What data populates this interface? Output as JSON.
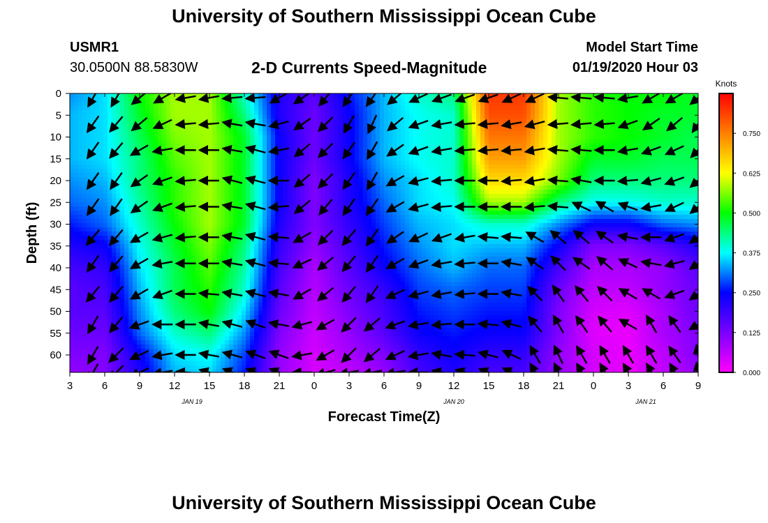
{
  "header": {
    "title": "University of Southern Mississippi Ocean Cube",
    "station_id": "USMR1",
    "station_coords": "30.0500N 88.5830W",
    "chart_title": "2-D Currents Speed-Magnitude",
    "model_start_label": "Model Start Time",
    "model_start_value": "01/19/2020 Hour 03"
  },
  "footer": {
    "title": "University of Southern Mississippi Ocean Cube"
  },
  "chart_data": {
    "type": "heatmap",
    "title": "2-D Currents Speed-Magnitude",
    "xlabel": "Forecast Time(Z)",
    "ylabel": "Depth (ft)",
    "x_tick_labels": [
      "3",
      "6",
      "9",
      "12",
      "15",
      "18",
      "21",
      "0",
      "3",
      "6",
      "9",
      "12",
      "15",
      "18",
      "21",
      "0",
      "3",
      "6",
      "9"
    ],
    "date_labels": [
      {
        "label": "JAN 19",
        "at_tick": 3.5
      },
      {
        "label": "JAN 20",
        "at_tick": 11
      },
      {
        "label": "JAN 21",
        "at_tick": 16.5
      }
    ],
    "y_ticks": [
      0,
      5,
      10,
      15,
      20,
      25,
      30,
      35,
      40,
      45,
      50,
      55,
      60
    ],
    "ylim": [
      64,
      0
    ],
    "colorbar": {
      "unit": "Knots",
      "min": 0,
      "max": 0.875,
      "tick_values": [
        0.0,
        0.125,
        0.25,
        0.375,
        0.5,
        0.625,
        0.75
      ],
      "tick_labels": [
        "0.000",
        "0.125",
        "0.250",
        "0.375",
        "0.500",
        "0.625",
        "0.750"
      ],
      "colors": [
        "#ff00ff",
        "#7a00ff",
        "#0000ff",
        "#00ffff",
        "#00ff00",
        "#ffff00",
        "#ff8000",
        "#ff0000"
      ]
    },
    "hours": [
      0,
      3,
      6,
      9,
      12,
      15,
      18,
      21,
      24,
      27,
      30,
      33,
      36,
      39,
      42,
      45,
      48,
      51,
      54
    ],
    "depths": [
      0,
      5,
      10,
      15,
      20,
      25,
      30,
      35,
      40,
      45,
      50,
      55,
      60,
      64
    ],
    "speed_knots": [
      [
        0.32,
        0.36,
        0.5,
        0.58,
        0.58,
        0.4,
        0.22,
        0.16,
        0.26,
        0.34,
        0.4,
        0.44,
        0.82,
        0.82,
        0.58,
        0.52,
        0.5,
        0.5,
        0.48
      ],
      [
        0.34,
        0.36,
        0.48,
        0.58,
        0.58,
        0.44,
        0.22,
        0.14,
        0.24,
        0.34,
        0.38,
        0.4,
        0.8,
        0.8,
        0.58,
        0.52,
        0.5,
        0.48,
        0.48
      ],
      [
        0.34,
        0.36,
        0.46,
        0.56,
        0.58,
        0.48,
        0.24,
        0.14,
        0.24,
        0.34,
        0.38,
        0.4,
        0.76,
        0.76,
        0.58,
        0.52,
        0.5,
        0.48,
        0.46
      ],
      [
        0.34,
        0.36,
        0.44,
        0.54,
        0.58,
        0.48,
        0.24,
        0.14,
        0.24,
        0.34,
        0.38,
        0.4,
        0.72,
        0.72,
        0.58,
        0.48,
        0.48,
        0.46,
        0.46
      ],
      [
        0.32,
        0.34,
        0.44,
        0.52,
        0.58,
        0.48,
        0.24,
        0.12,
        0.22,
        0.32,
        0.36,
        0.4,
        0.66,
        0.66,
        0.56,
        0.44,
        0.44,
        0.44,
        0.44
      ],
      [
        0.3,
        0.32,
        0.42,
        0.52,
        0.58,
        0.48,
        0.24,
        0.12,
        0.22,
        0.3,
        0.36,
        0.38,
        0.58,
        0.58,
        0.44,
        0.38,
        0.38,
        0.4,
        0.4
      ],
      [
        0.26,
        0.3,
        0.4,
        0.5,
        0.58,
        0.48,
        0.22,
        0.12,
        0.2,
        0.28,
        0.34,
        0.36,
        0.4,
        0.4,
        0.32,
        0.24,
        0.24,
        0.3,
        0.32
      ],
      [
        0.22,
        0.24,
        0.38,
        0.48,
        0.56,
        0.44,
        0.2,
        0.1,
        0.18,
        0.26,
        0.32,
        0.36,
        0.34,
        0.34,
        0.24,
        0.12,
        0.12,
        0.16,
        0.22
      ],
      [
        0.18,
        0.2,
        0.36,
        0.46,
        0.54,
        0.42,
        0.18,
        0.08,
        0.16,
        0.24,
        0.3,
        0.34,
        0.3,
        0.3,
        0.18,
        0.08,
        0.08,
        0.1,
        0.16
      ],
      [
        0.16,
        0.18,
        0.34,
        0.46,
        0.52,
        0.4,
        0.16,
        0.07,
        0.14,
        0.2,
        0.28,
        0.3,
        0.28,
        0.28,
        0.14,
        0.06,
        0.06,
        0.1,
        0.14
      ],
      [
        0.16,
        0.16,
        0.32,
        0.44,
        0.5,
        0.36,
        0.14,
        0.06,
        0.12,
        0.18,
        0.26,
        0.28,
        0.26,
        0.26,
        0.12,
        0.04,
        0.03,
        0.08,
        0.14
      ],
      [
        0.14,
        0.14,
        0.3,
        0.4,
        0.44,
        0.32,
        0.12,
        0.05,
        0.1,
        0.16,
        0.24,
        0.26,
        0.24,
        0.24,
        0.12,
        0.03,
        0.02,
        0.08,
        0.12
      ],
      [
        0.12,
        0.12,
        0.24,
        0.36,
        0.38,
        0.28,
        0.1,
        0.04,
        0.08,
        0.12,
        0.2,
        0.24,
        0.2,
        0.2,
        0.1,
        0.04,
        0.02,
        0.06,
        0.12
      ],
      [
        0.1,
        0.12,
        0.22,
        0.34,
        0.36,
        0.26,
        0.1,
        0.04,
        0.06,
        0.1,
        0.18,
        0.22,
        0.18,
        0.18,
        0.1,
        0.04,
        0.02,
        0.06,
        0.1
      ]
    ],
    "vector_times": [
      2,
      4,
      6,
      8,
      10,
      12,
      14,
      16,
      18,
      20,
      22,
      24,
      26,
      28,
      30,
      32,
      34,
      36,
      38,
      40,
      42,
      44,
      46,
      48,
      50,
      52,
      54
    ],
    "vector_depths": [
      1,
      7,
      13,
      20,
      26,
      33,
      39,
      46,
      53,
      60,
      64
    ],
    "vector_angle_deg": [
      [
        60,
        60,
        40,
        30,
        10,
        10,
        5,
        5,
        30,
        35,
        50,
        55,
        55,
        40,
        25,
        20,
        20,
        20,
        25,
        25,
        -5,
        -5,
        -5,
        10,
        30,
        30,
        40
      ],
      [
        55,
        50,
        40,
        25,
        5,
        5,
        -10,
        -10,
        15,
        35,
        45,
        60,
        65,
        40,
        20,
        10,
        5,
        5,
        10,
        15,
        5,
        5,
        5,
        20,
        35,
        40,
        55
      ],
      [
        55,
        50,
        30,
        10,
        0,
        0,
        -10,
        -15,
        10,
        40,
        45,
        55,
        60,
        35,
        20,
        10,
        5,
        5,
        5,
        10,
        -5,
        -5,
        0,
        10,
        20,
        25,
        45
      ],
      [
        55,
        55,
        35,
        20,
        5,
        0,
        -15,
        -15,
        0,
        40,
        45,
        55,
        60,
        30,
        15,
        5,
        0,
        0,
        5,
        10,
        -5,
        -10,
        0,
        5,
        15,
        20,
        40
      ],
      [
        55,
        55,
        35,
        20,
        5,
        0,
        -10,
        -15,
        5,
        40,
        50,
        55,
        55,
        30,
        15,
        5,
        0,
        0,
        0,
        5,
        -5,
        -25,
        -30,
        -20,
        10,
        25,
        40
      ],
      [
        50,
        50,
        30,
        15,
        5,
        0,
        -10,
        -15,
        -5,
        30,
        45,
        50,
        55,
        35,
        25,
        20,
        10,
        -5,
        -5,
        -30,
        -40,
        -40,
        -35,
        -10,
        0,
        20,
        35
      ],
      [
        55,
        50,
        30,
        10,
        0,
        0,
        -10,
        -15,
        -5,
        25,
        40,
        50,
        55,
        30,
        20,
        10,
        5,
        0,
        -10,
        -35,
        -45,
        -35,
        -40,
        -25,
        -10,
        15,
        35
      ],
      [
        50,
        50,
        30,
        20,
        0,
        -5,
        -10,
        -15,
        -10,
        30,
        40,
        50,
        55,
        25,
        15,
        10,
        5,
        0,
        -10,
        -45,
        -55,
        -50,
        -45,
        -30,
        -30,
        20,
        35
      ],
      [
        60,
        50,
        20,
        0,
        0,
        -10,
        -15,
        -20,
        -10,
        15,
        30,
        45,
        40,
        20,
        10,
        5,
        0,
        -5,
        -15,
        -50,
        -60,
        -55,
        -50,
        -30,
        -60,
        -55,
        30
      ],
      [
        60,
        45,
        25,
        10,
        0,
        -10,
        -15,
        -20,
        -20,
        10,
        30,
        45,
        40,
        25,
        10,
        -10,
        -5,
        -15,
        -25,
        -60,
        -65,
        -60,
        -60,
        -60,
        -60,
        -55,
        -80
      ],
      [
        60,
        45,
        25,
        10,
        -5,
        -15,
        -20,
        -20,
        -20,
        0,
        15,
        10,
        10,
        10,
        0,
        -10,
        -15,
        -20,
        -25,
        -60,
        -65,
        -60,
        -60,
        -60,
        -60,
        -60,
        -80
      ]
    ]
  }
}
